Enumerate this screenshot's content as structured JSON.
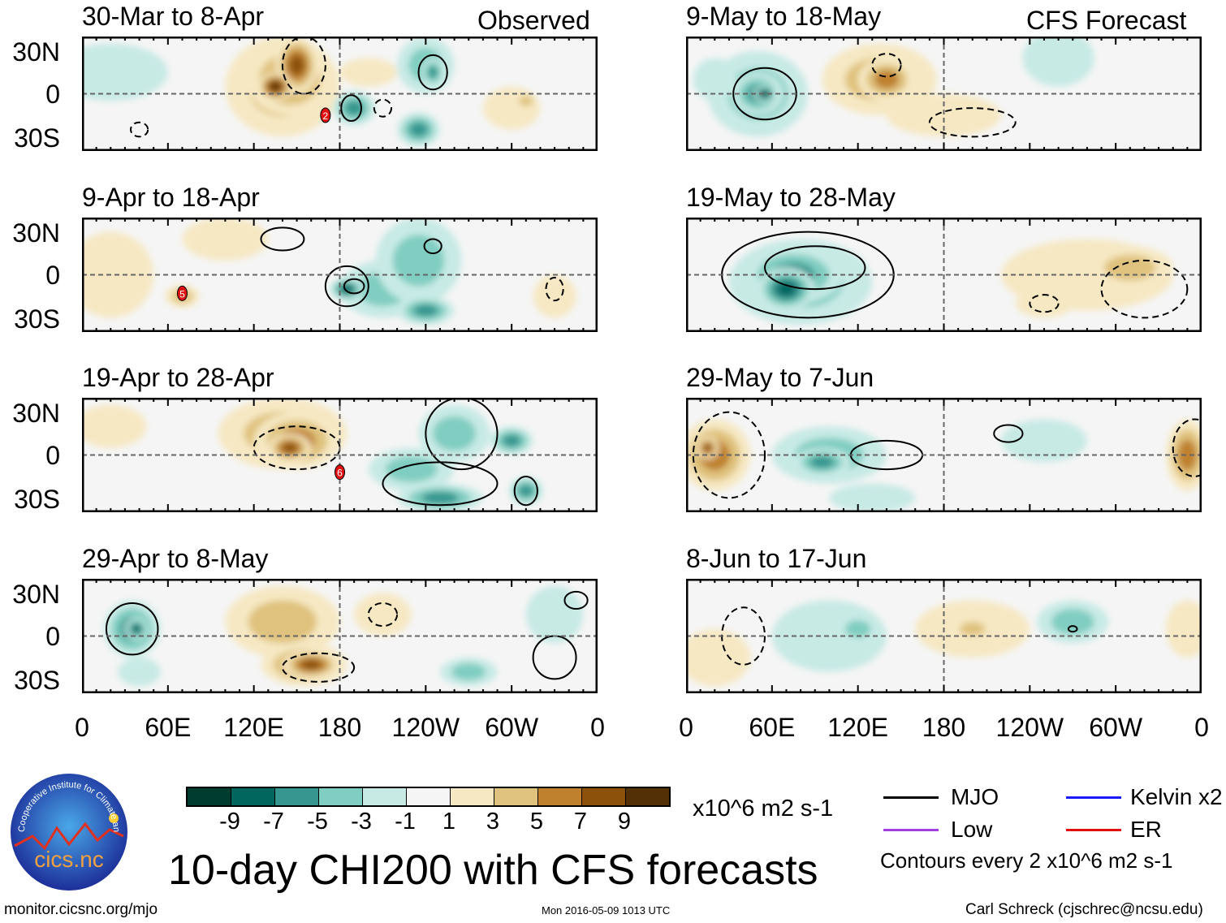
{
  "header": {
    "observed_label": "Observed",
    "forecast_label": "CFS Forecast"
  },
  "panels": [
    {
      "title": "30-Mar to 8-Apr",
      "group": "observed",
      "marker": "2"
    },
    {
      "title": "9-Apr to 18-Apr",
      "group": "observed",
      "marker": "5"
    },
    {
      "title": "19-Apr to 28-Apr",
      "group": "observed",
      "marker": "6"
    },
    {
      "title": "29-Apr to 8-May",
      "group": "observed"
    },
    {
      "title": "9-May to 18-May",
      "group": "forecast"
    },
    {
      "title": "19-May to 28-May",
      "group": "forecast"
    },
    {
      "title": "29-May to 7-Jun",
      "group": "forecast"
    },
    {
      "title": "8-Jun to 17-Jun",
      "group": "forecast"
    }
  ],
  "lat_labels": [
    "30N",
    "0",
    "30S"
  ],
  "lon_labels": [
    "0",
    "60E",
    "120E",
    "180",
    "120W",
    "60W",
    "0"
  ],
  "colorbar": {
    "colors": [
      "#003c30",
      "#01665e",
      "#35978f",
      "#80cdc1",
      "#c7eae5",
      "#f5f5f5",
      "#f6e8c3",
      "#dfc27d",
      "#bf812d",
      "#8c510a",
      "#543005"
    ],
    "labels": [
      "-9",
      "-7",
      "-5",
      "-3",
      "-1",
      "1",
      "3",
      "5",
      "7",
      "9"
    ],
    "units": "x10^6 m2 s-1"
  },
  "title": "10-day CHI200 with CFS forecasts",
  "legend": {
    "items": [
      {
        "label": "MJO",
        "color": "#000000"
      },
      {
        "label": "Kelvin x2",
        "color": "#1a1aff"
      },
      {
        "label": "Low",
        "color": "#a040e0"
      },
      {
        "label": "ER",
        "color": "#e01010"
      }
    ],
    "note": "Contours every 2 x10^6 m2 s-1"
  },
  "logo": {
    "text": "cics.nc",
    "ring_text": "Cooperative Institute for Climate and Satellites"
  },
  "footer": {
    "url": "monitor.cicsnc.org/mjo",
    "timestamp": "Mon 2016-05-09 1013 UTC",
    "credit": "Carl Schreck (cjschrec@ncsu.edu)"
  }
}
